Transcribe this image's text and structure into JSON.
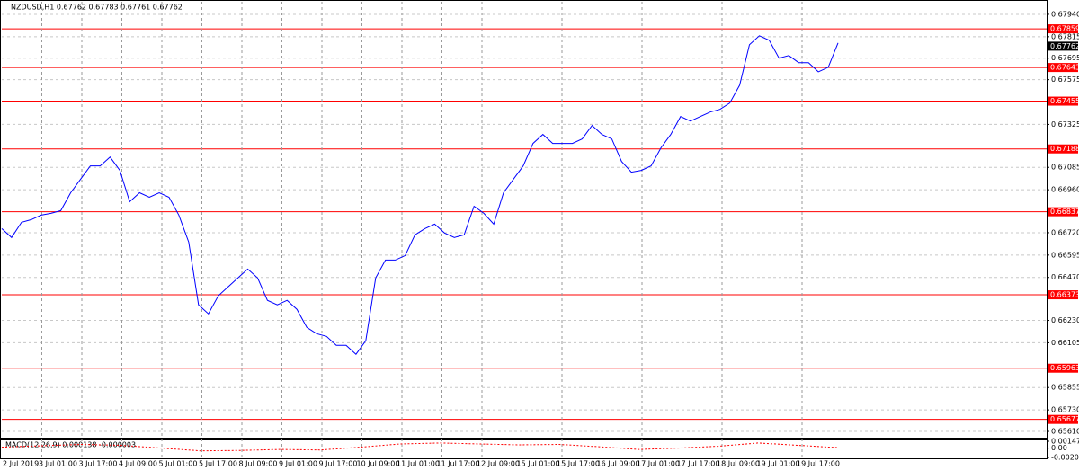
{
  "chart_data": [
    {
      "type": "line",
      "title": "NZDUSD,H1  0.67762 0.67783 0.67761 0.67762",
      "color": "#0000ff",
      "level_color": "#ff0000",
      "grid": true,
      "ylim": [
        0.65575,
        0.6801
      ],
      "yticks": [
        {
          "value": 0.6794,
          "label": "0.67940"
        },
        0.67815,
        0.67695,
        0.67575,
        0.67325,
        {
          "value": 0.67085,
          "label": "0.67085"
        },
        {
          "value": 0.6696,
          "label": "0.66960"
        },
        {
          "value": 0.6672,
          "label": "0.66720"
        },
        0.66595,
        {
          "value": 0.6647,
          "label": "0.66470"
        },
        {
          "value": 0.6623,
          "label": "0.66230"
        },
        0.66105,
        0.65855,
        {
          "value": 0.6573,
          "label": "0.65730"
        },
        {
          "value": 0.6561,
          "label": "0.65610"
        }
      ],
      "levels": [
        0.67859,
        0.67643,
        0.67455,
        0.67188,
        0.66837,
        0.66373,
        0.65963,
        0.65677
      ],
      "current_price": 0.67762,
      "x_labels": [
        "2 Jul 2019",
        "3 Jul 01:00",
        "3 Jul 17:00",
        "4 Jul 09:00",
        "5 Jul 01:00",
        "5 Jul 17:00",
        "8 Jul 09:00",
        "9 Jul 01:00",
        "9 Jul 17:00",
        "10 Jul 09:00",
        "11 Jul 01:00",
        "11 Jul 17:00",
        "12 Jul 09:00",
        "15 Jul 01:00",
        "15 Jul 17:00",
        "16 Jul 09:00",
        "17 Jul 01:00",
        "17 Jul 17:00",
        "18 Jul 09:00",
        "19 Jul 01:00",
        "19 Jul 17:00"
      ],
      "values": [
        0.66743,
        0.66693,
        0.66778,
        0.66793,
        0.66818,
        0.66828,
        0.66843,
        0.66943,
        0.67018,
        0.67093,
        0.67093,
        0.67143,
        0.67068,
        0.66893,
        0.66943,
        0.66918,
        0.66943,
        0.66918,
        0.66818,
        0.66667,
        0.66317,
        0.66267,
        0.66367,
        0.66417,
        0.66467,
        0.66517,
        0.66467,
        0.66342,
        0.66317,
        0.66342,
        0.66292,
        0.66191,
        0.66156,
        0.66141,
        0.66091,
        0.66091,
        0.66041,
        0.66116,
        0.66467,
        0.66567,
        0.66567,
        0.66592,
        0.66708,
        0.66743,
        0.66768,
        0.66718,
        0.66693,
        0.66708,
        0.66868,
        0.66828,
        0.66768,
        0.66943,
        0.67018,
        0.67093,
        0.67219,
        0.67269,
        0.67219,
        0.67219,
        0.67219,
        0.67244,
        0.67319,
        0.67269,
        0.67244,
        0.67118,
        0.67058,
        0.67068,
        0.67093,
        0.67194,
        0.67269,
        0.67369,
        0.67344,
        0.67369,
        0.67394,
        0.67409,
        0.67444,
        0.67544,
        0.6777,
        0.6782,
        0.67795,
        0.67695,
        0.6771,
        0.6767,
        0.6767,
        0.67619,
        0.67644,
        0.6778
      ]
    },
    {
      "type": "line",
      "title": "MACD(12,26,9) 0.000138 -0.000003",
      "color": "#ff0000",
      "ylim": [
        -0.002018,
        0.001475
      ],
      "yticks": [
        0.001475,
        {
          "value": 0,
          "label": "0.00"
        },
        -0.002018
      ],
      "values": [
        0.0002,
        0.0005,
        0.0008,
        0.0006,
        0.0,
        -0.0006,
        -0.0005,
        -0.0003,
        -0.0004,
        0.0002,
        0.0009,
        0.0011,
        0.0009,
        0.0007,
        0.0008,
        0.0003,
        -0.0003,
        0.0,
        0.0004,
        0.0011,
        0.0006,
        0.0001
      ]
    }
  ]
}
